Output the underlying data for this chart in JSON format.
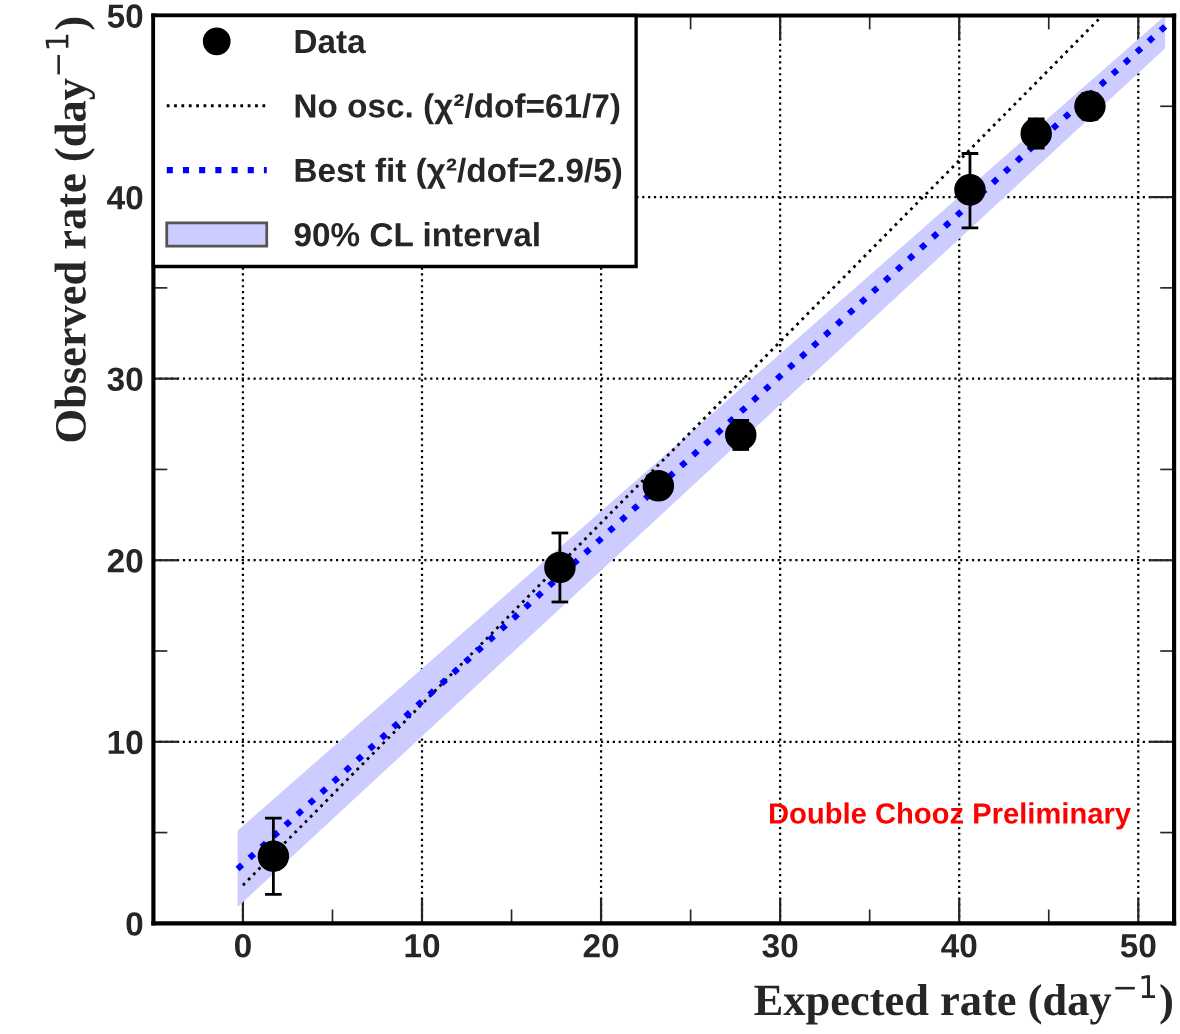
{
  "chart_data": {
    "type": "scatter",
    "xlabel": "Expected rate (day$^{−1}$)",
    "ylabel": "Observed rate (day$^{−1}$)",
    "xlim": [
      -5,
      52
    ],
    "ylim": [
      0,
      50
    ],
    "xticks": [
      0,
      10,
      20,
      30,
      40,
      50
    ],
    "yticks": [
      0,
      10,
      20,
      30,
      40,
      50
    ],
    "grid": true,
    "legend": "top left",
    "annotations": [
      "Double Chooz Preliminary"
    ],
    "series": [
      {
        "name": "Data",
        "marker": "circle",
        "color": "#000000",
        "x": [
          1.7,
          17.7,
          23.2,
          27.8,
          40.6,
          44.3,
          47.3
        ],
        "values": [
          3.7,
          19.6,
          24.1,
          26.9,
          40.4,
          43.5,
          45.0
        ],
        "errors": [
          [
            1.6,
            5.8
          ],
          [
            17.7,
            21.5
          ],
          [
            23.6,
            24.6
          ],
          [
            26.1,
            27.7
          ],
          [
            38.3,
            42.4
          ],
          [
            42.7,
            44.3
          ],
          [
            44.3,
            45.7
          ]
        ]
      },
      {
        "name": "No osc. (χ²/dof=61/7)",
        "type": "line",
        "line_style": "dotted",
        "color": "#000000",
        "x": [
          0,
          48
        ],
        "values": [
          2.1,
          50
        ]
      },
      {
        "name": "Best fit (χ²/dof=2.9/5)",
        "type": "line",
        "line_style": "dotted",
        "color": "#0000ff",
        "x": [
          -0.3,
          51.5
        ],
        "values": [
          3.0,
          49.4
        ],
        "lower": [
          0.9,
          48.2
        ],
        "upper": [
          5.1,
          50.0
        ]
      },
      {
        "name": "90% CL interval",
        "type": "area",
        "color": "#ccccff"
      }
    ]
  }
}
